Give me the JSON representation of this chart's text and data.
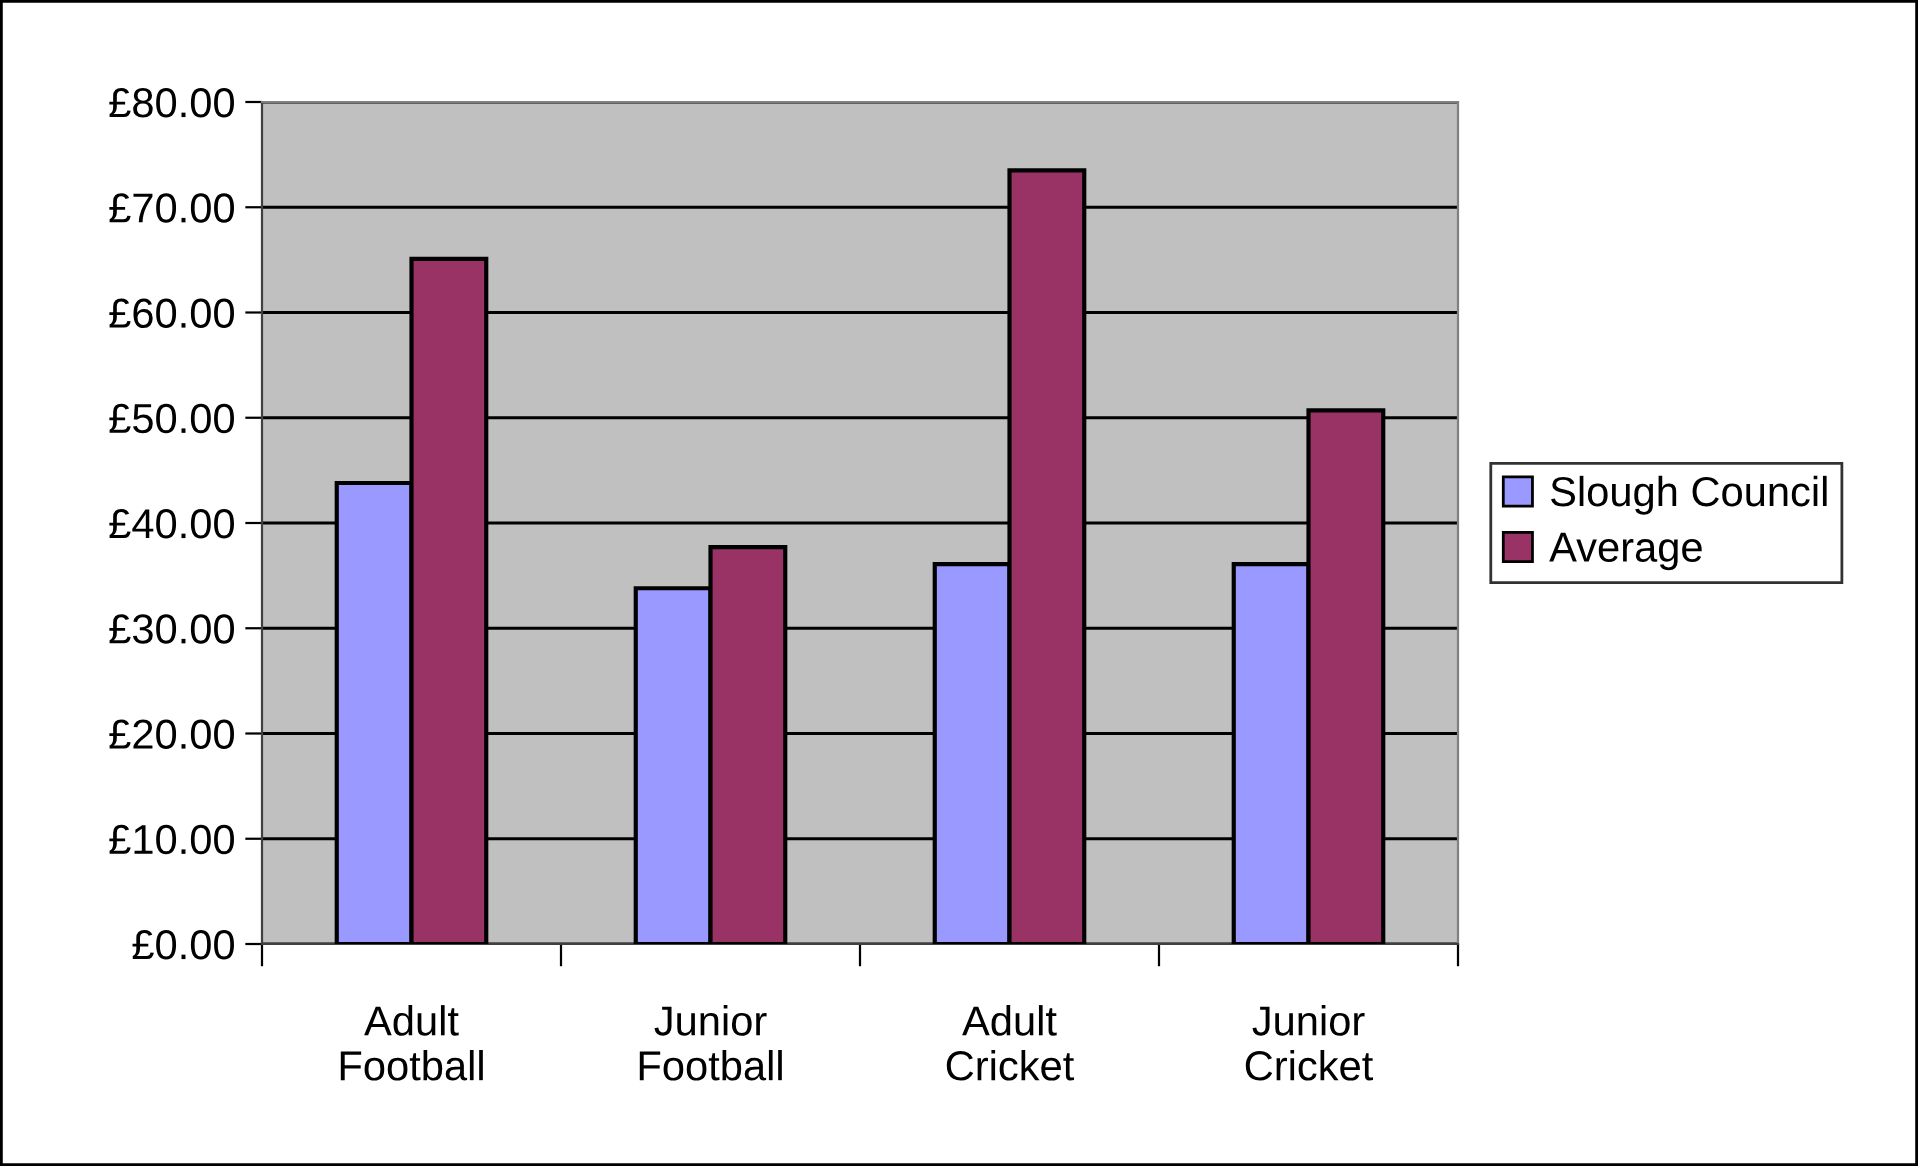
{
  "chart_data": {
    "type": "bar",
    "categories": [
      "Adult\nFootball",
      "Junior\nFootball",
      "Adult\nCricket",
      "Junior\nCricket"
    ],
    "series": [
      {
        "name": "Slough Council",
        "color": "#9999ff",
        "values": [
          43.8,
          33.8,
          36.1,
          36.1
        ]
      },
      {
        "name": "Average",
        "color": "#993366",
        "values": [
          65.1,
          37.7,
          73.5,
          50.7
        ]
      }
    ],
    "ylim": [
      0,
      80
    ],
    "yticks": [
      {
        "value": 0,
        "label": "£0.00"
      },
      {
        "value": 10,
        "label": "£10.00"
      },
      {
        "value": 20,
        "label": "£20.00"
      },
      {
        "value": 30,
        "label": "£30.00"
      },
      {
        "value": 40,
        "label": "£40.00"
      },
      {
        "value": 50,
        "label": "£50.00"
      },
      {
        "value": 60,
        "label": "£60.00"
      },
      {
        "value": 70,
        "label": "£70.00"
      },
      {
        "value": 80,
        "label": "£80.00"
      }
    ],
    "grid": "y",
    "legend": "right"
  }
}
